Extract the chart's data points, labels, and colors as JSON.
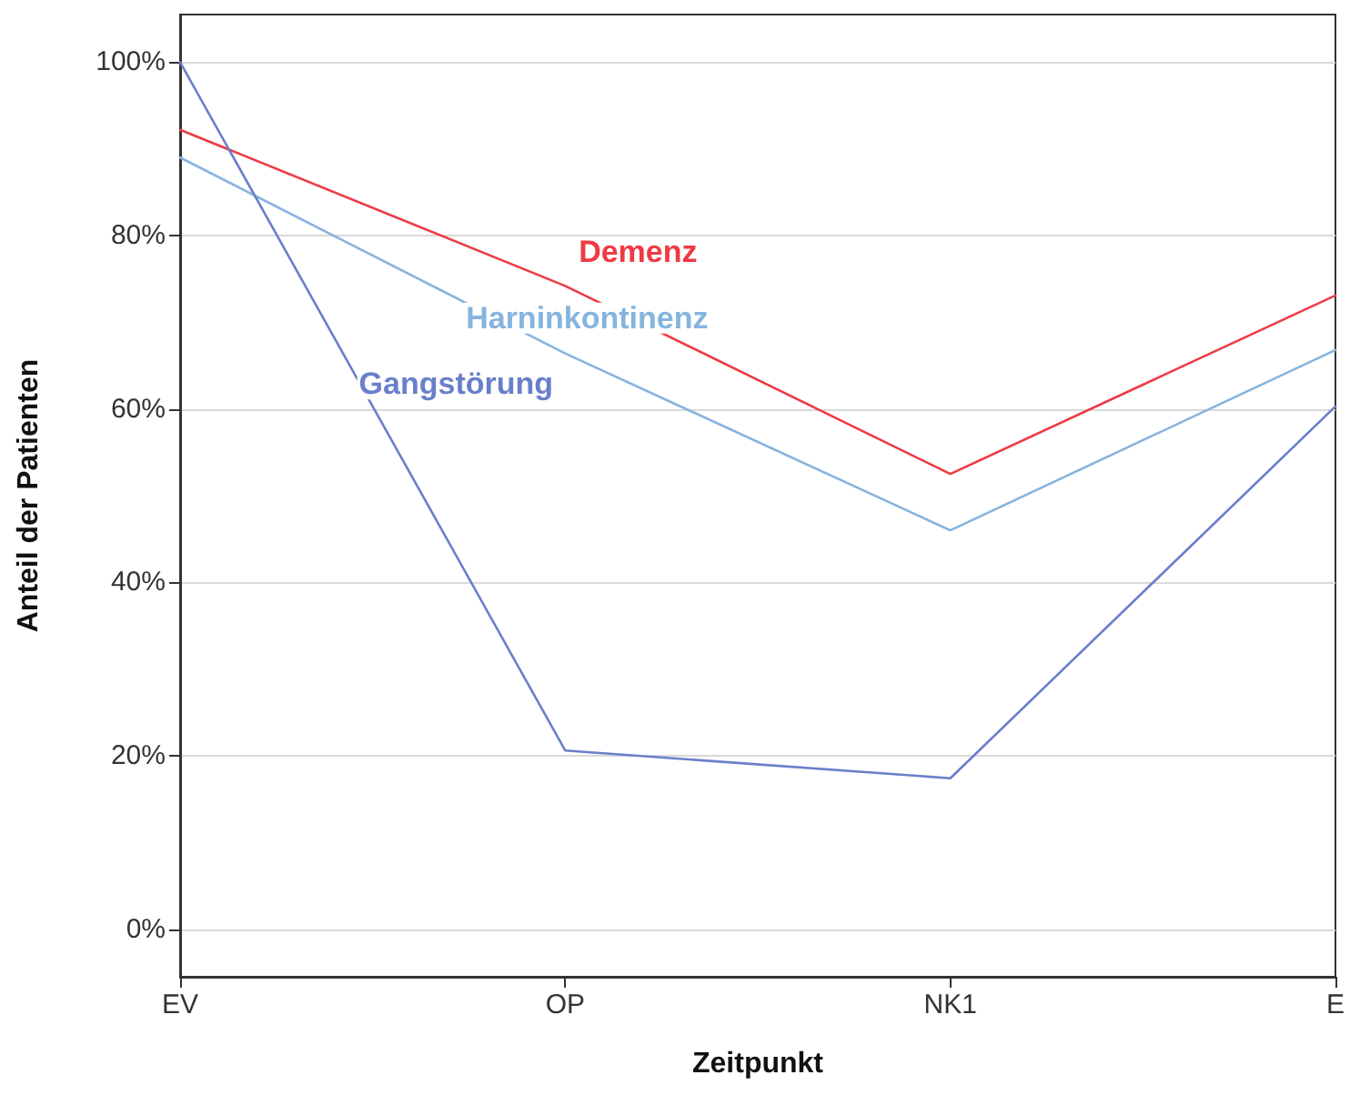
{
  "chart_data": {
    "type": "line",
    "xlabel": "Zeitpunkt",
    "ylabel": "Anteil der Patienten",
    "categories": [
      "EV",
      "OP",
      "NK1",
      "E"
    ],
    "series": [
      {
        "name": "Demenz",
        "color": "#ee3b45",
        "values": [
          92.2,
          74.2,
          52.5,
          73.1
        ]
      },
      {
        "name": "Harninkontinenz",
        "color": "#86b4df",
        "values": [
          89,
          66.4,
          46,
          66.8
        ]
      },
      {
        "name": "Gangstörung",
        "color": "#6a7fcb",
        "values": [
          100,
          20.6,
          17.4,
          60.3
        ]
      }
    ],
    "ylim": [
      -5.5,
      105.5
    ],
    "yticks": [
      {
        "value": 0,
        "label": "0%"
      },
      {
        "value": 20,
        "label": "20%"
      },
      {
        "value": 40,
        "label": "40%"
      },
      {
        "value": 60,
        "label": "60%"
      },
      {
        "value": 80,
        "label": "80%"
      },
      {
        "value": 100,
        "label": "100%"
      }
    ],
    "grid": "y",
    "legend": false,
    "marker": "none",
    "line_style": "solid"
  }
}
